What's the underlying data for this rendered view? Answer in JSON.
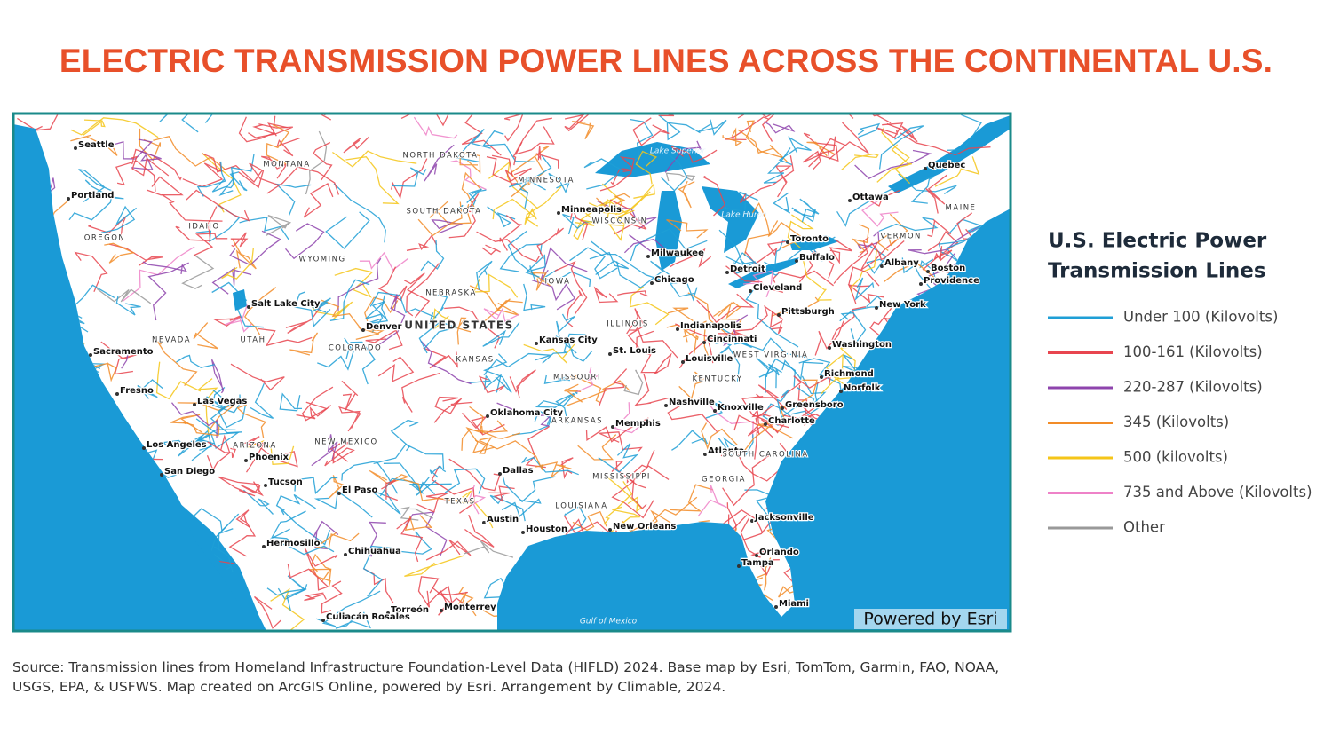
{
  "title": "ELECTRIC TRANSMISSION POWER LINES ACROSS THE CONTINENTAL U.S.",
  "map": {
    "cities": [
      "Seattle",
      "Portland",
      "Salt Lake City",
      "Sacramento",
      "Fresno",
      "Las Vegas",
      "Los Angeles",
      "San Diego",
      "Phoenix",
      "Tucson",
      "Denver",
      "El Paso",
      "Hermosillo",
      "Chihuahua",
      "Torreón",
      "Monterrey",
      "Culiacán Rosales",
      "Minneapolis",
      "Milwaukee",
      "Chicago",
      "Detroit",
      "Toronto",
      "Buffalo",
      "Ottawa",
      "Quebec",
      "Cleveland",
      "Pittsburgh",
      "New York",
      "Boston",
      "Providence",
      "Albany",
      "Washington",
      "Richmond",
      "Norfolk",
      "Indianapolis",
      "Cincinnati",
      "Louisville",
      "St. Louis",
      "Kansas City",
      "Oklahoma City",
      "Dallas",
      "Austin",
      "Houston",
      "New Orleans",
      "Memphis",
      "Nashville",
      "Knoxville",
      "Charlotte",
      "Greensboro",
      "Atlanta",
      "Jacksonville",
      "Orlando",
      "Tampa",
      "Miami"
    ],
    "regions": [
      "MONTANA",
      "NORTH DAKOTA",
      "SOUTH DAKOTA",
      "MINNESOTA",
      "WISCONSIN",
      "OREGON",
      "IDAHO",
      "WYOMING",
      "NEBRASKA",
      "IOWA",
      "ILLINOIS",
      "NEVADA",
      "UTAH",
      "COLORADO",
      "KANSAS",
      "MISSOURI",
      "KENTUCKY",
      "WEST VIRGINIA",
      "ARIZONA",
      "NEW MEXICO",
      "ARKANSAS",
      "TEXAS",
      "LOUISIANA",
      "MISSISSIPPI",
      "GEORGIA",
      "SOUTH CAROLINA",
      "VERMONT",
      "MAINE",
      "UNITED STATES"
    ],
    "water": [
      "Lake Superior",
      "Lake Huron",
      "Gulf of Mexico"
    ],
    "credit": "Powered by Esri"
  },
  "legend": {
    "title_lines": [
      "U.S. Electric Power",
      "Transmission Lines"
    ],
    "items": [
      {
        "label": "Under 100 (Kilovolts)",
        "color": "#1f9fd6"
      },
      {
        "label": "100-161 (Kilovolts)",
        "color": "#e8454f"
      },
      {
        "label": "220-287 (Kilovolts)",
        "color": "#8e44ad"
      },
      {
        "label": "345 (Kilovolts)",
        "color": "#f28c28"
      },
      {
        "label": "500 (kilovolts)",
        "color": "#f5c518"
      },
      {
        "label": "735 and Above (Kilovolts)",
        "color": "#ee82c8"
      },
      {
        "label": "Other",
        "color": "#999999"
      }
    ]
  },
  "source": "Source: Transmission lines from Homeland Infrastructure Foundation-Level Data (HIFLD) 2024. Base map by Esri, TomTom, Garmin, FAO, NOAA, USGS, EPA, & USFWS. Map created on ArcGIS Online, powered by Esri. Arrangement by Climable, 2024."
}
